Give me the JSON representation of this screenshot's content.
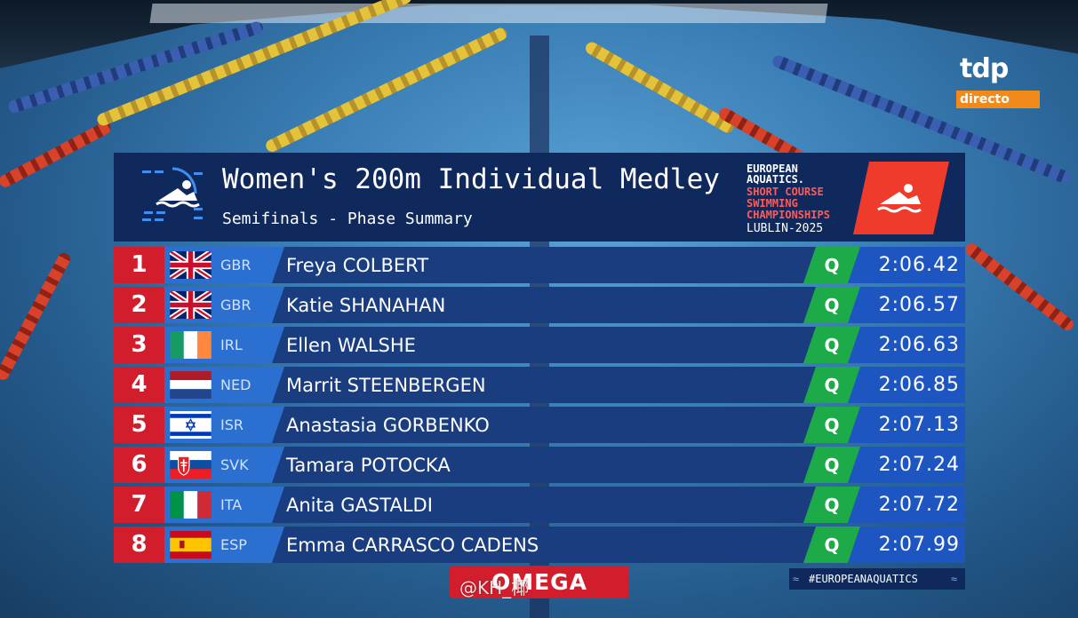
{
  "broadcaster": {
    "logo_text": "tdp",
    "status": "directo"
  },
  "header": {
    "title": "Women's 200m Individual Medley",
    "subtitle": "Semifinals - Phase Summary",
    "event": {
      "line1": "EUROPEAN",
      "line2": "AQUATICS.",
      "line3": "SHORT COURSE",
      "line4": "SWIMMING",
      "line5": "CHAMPIONSHIPS",
      "city_year": "LUBLIN-2025"
    }
  },
  "results": [
    {
      "rank": "1",
      "nation": "GBR",
      "flag": "gbr-flag",
      "name": "Freya COLBERT",
      "qualifier": "Q",
      "time": "2:06.42"
    },
    {
      "rank": "2",
      "nation": "GBR",
      "flag": "gbr-flag",
      "name": "Katie SHANAHAN",
      "qualifier": "Q",
      "time": "2:06.57"
    },
    {
      "rank": "3",
      "nation": "IRL",
      "flag": "irl-flag",
      "name": "Ellen WALSHE",
      "qualifier": "Q",
      "time": "2:06.63"
    },
    {
      "rank": "4",
      "nation": "NED",
      "flag": "ned-flag",
      "name": "Marrit STEENBERGEN",
      "qualifier": "Q",
      "time": "2:06.85"
    },
    {
      "rank": "5",
      "nation": "ISR",
      "flag": "isr-flag",
      "name": "Anastasia GORBENKO",
      "qualifier": "Q",
      "time": "2:07.13"
    },
    {
      "rank": "6",
      "nation": "SVK",
      "flag": "svk-flag",
      "name": "Tamara POTOCKA",
      "qualifier": "Q",
      "time": "2:07.24"
    },
    {
      "rank": "7",
      "nation": "ITA",
      "flag": "ita-flag",
      "name": "Anita GASTALDI",
      "qualifier": "Q",
      "time": "2:07.72"
    },
    {
      "rank": "8",
      "nation": "ESP",
      "flag": "esp-flag",
      "name": "Emma CARRASCO CADENS",
      "qualifier": "Q",
      "time": "2:07.99"
    }
  ],
  "footer": {
    "sponsor": "OMEGA",
    "hashtag": "#EUROPEANAQUATICS",
    "watermark": "@KH_椰"
  },
  "colors": {
    "header_bg": "#10295c",
    "rank_red": "#d21d2c",
    "nation_blue": "#2b6fd0",
    "name_blue": "#1a3d80",
    "qualified_green": "#1dab4a",
    "time_blue": "#1d56c0",
    "brand_orange": "#f28a1a"
  }
}
